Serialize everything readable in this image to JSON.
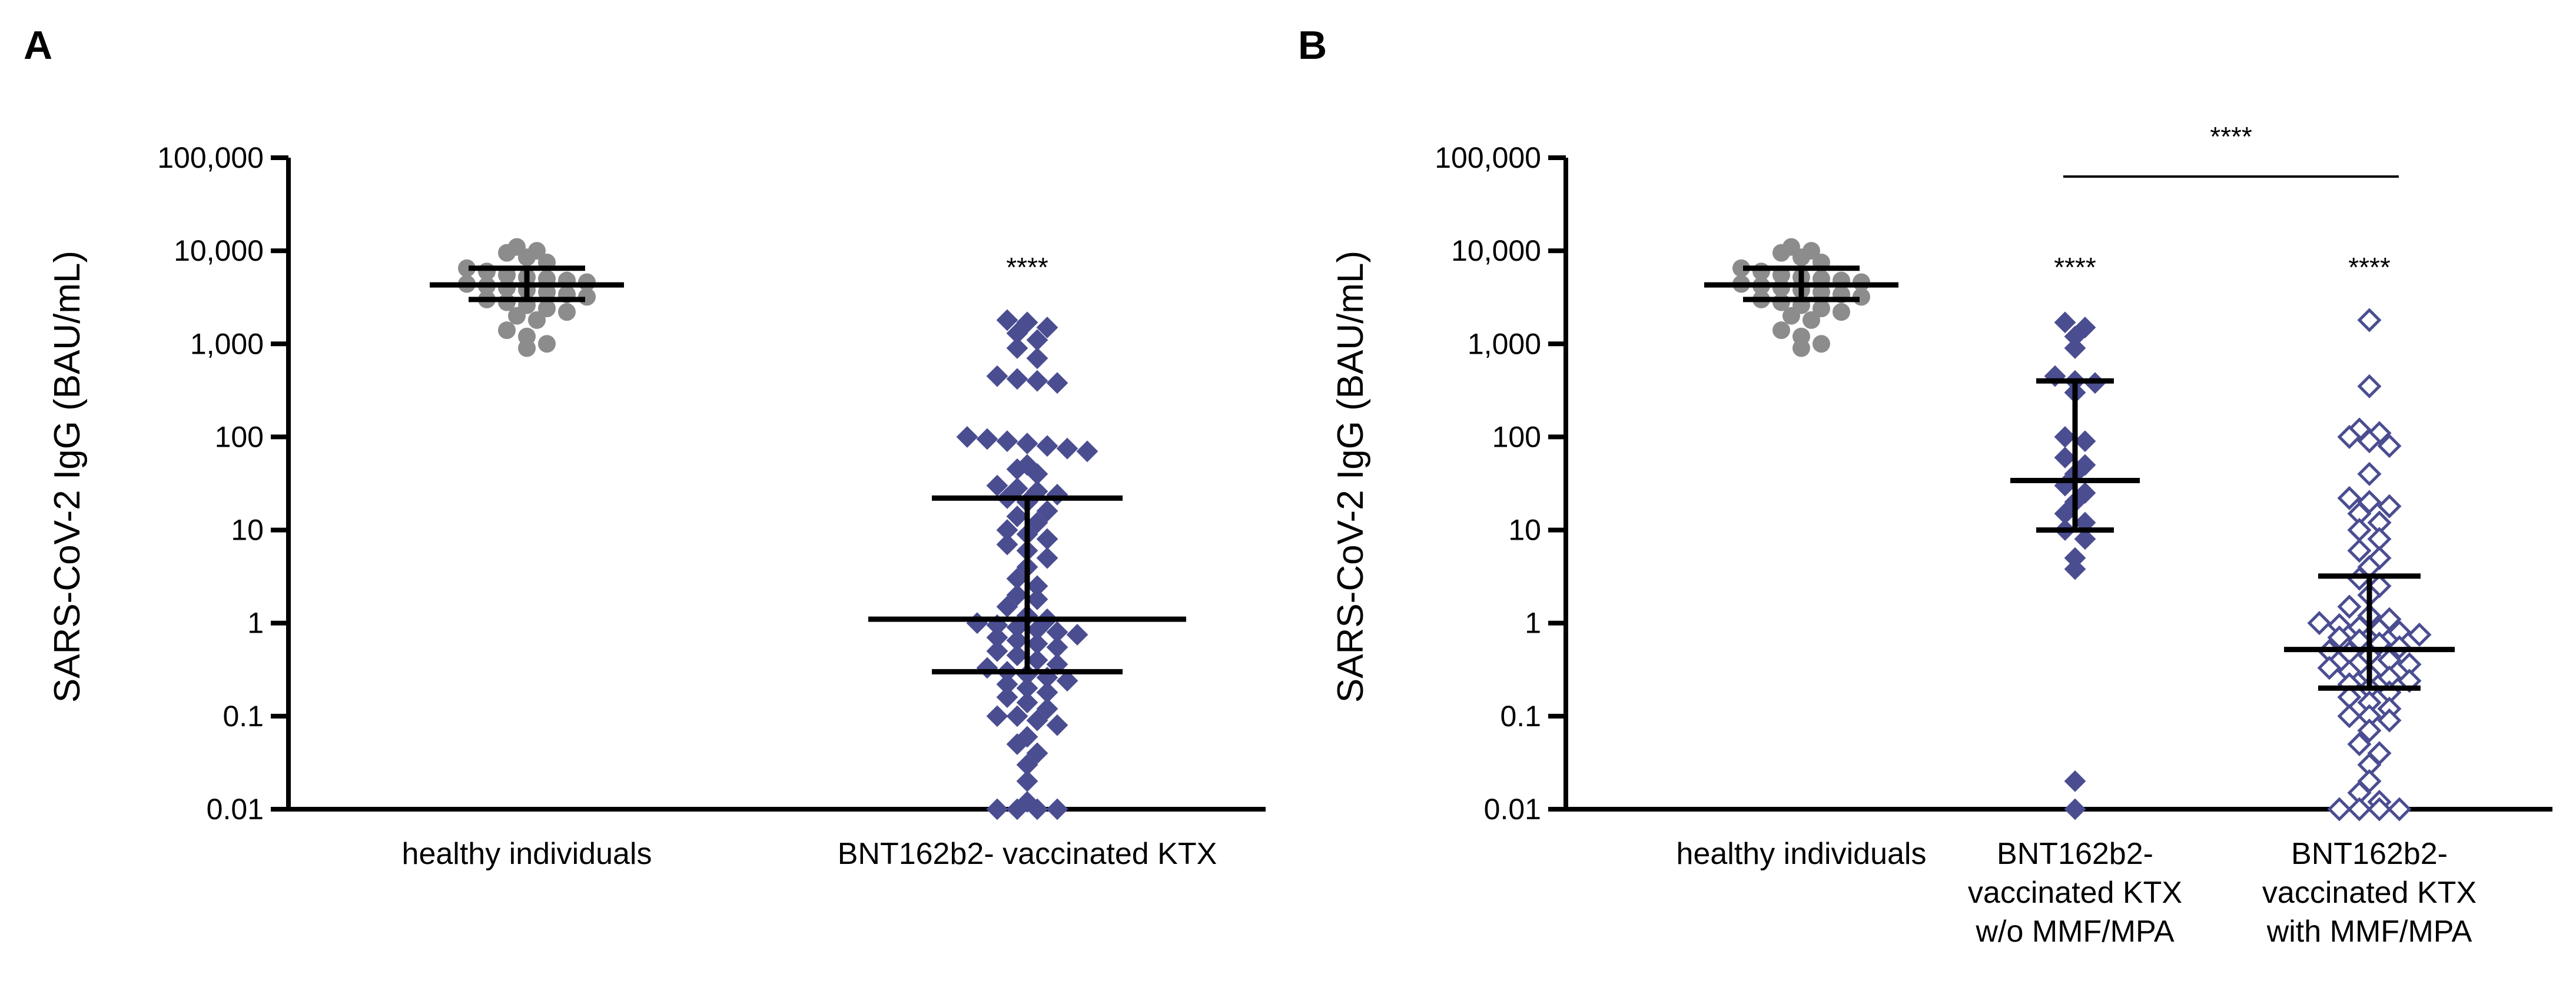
{
  "colors": {
    "healthy": "#8c8c8c",
    "ktx": "#4b4d91",
    "axis": "#000000"
  },
  "chart_data": [
    {
      "type": "scatter",
      "panel_label": "A",
      "ylabel": "SARS-CoV-2 IgG (BAU/mL)",
      "xlabel": "",
      "yscale": "log",
      "ylim": [
        0.01,
        100000
      ],
      "y_ticks": [
        {
          "value": 0.01,
          "label": "0.01"
        },
        {
          "value": 0.1,
          "label": "0.1"
        },
        {
          "value": 1,
          "label": "1"
        },
        {
          "value": 10,
          "label": "10"
        },
        {
          "value": 100,
          "label": "100"
        },
        {
          "value": 1000,
          "label": "1,000"
        },
        {
          "value": 10000,
          "label": "10,000"
        },
        {
          "value": 100000,
          "label": "100,000"
        }
      ],
      "groups": [
        {
          "name": "healthy individuals",
          "label_lines": [
            "healthy individuals"
          ],
          "marker": "circle",
          "color": "#8c8c8c",
          "median": 4300,
          "q1": 3000,
          "q3": 6500,
          "significance": "",
          "values": [
            11000,
            10000,
            9500,
            8500,
            7500,
            6500,
            6000,
            5500,
            5200,
            5000,
            4800,
            4600,
            4400,
            4200,
            4000,
            3800,
            3600,
            3400,
            3200,
            3000,
            2800,
            2600,
            2400,
            2200,
            2000,
            1800,
            1400,
            1200,
            1000,
            900
          ]
        },
        {
          "name": "BNT162b2- vaccinated KTX",
          "label_lines": [
            "BNT162b2- vaccinated KTX"
          ],
          "marker": "diamond",
          "color": "#4b4d91",
          "median": 1.1,
          "q1": 0.3,
          "q3": 22,
          "significance": "****",
          "values": [
            1800,
            1700,
            1500,
            1300,
            1100,
            900,
            700,
            450,
            420,
            400,
            380,
            100,
            95,
            90,
            85,
            80,
            75,
            70,
            50,
            45,
            40,
            30,
            28,
            26,
            24,
            22,
            20,
            16,
            14,
            12,
            10,
            9,
            8,
            7,
            6,
            5,
            4,
            3,
            2.5,
            2,
            1.8,
            1.5,
            1.2,
            1.1,
            1.0,
            0.95,
            0.9,
            0.85,
            0.8,
            0.75,
            0.7,
            0.65,
            0.6,
            0.55,
            0.5,
            0.45,
            0.4,
            0.36,
            0.33,
            0.3,
            0.28,
            0.26,
            0.24,
            0.22,
            0.2,
            0.18,
            0.16,
            0.14,
            0.12,
            0.1,
            0.1,
            0.09,
            0.08,
            0.06,
            0.05,
            0.04,
            0.03,
            0.02,
            0.012,
            0.01,
            0.01,
            0.01,
            0.01
          ]
        }
      ],
      "comparison": null
    },
    {
      "type": "scatter",
      "panel_label": "B",
      "ylabel": "SARS-CoV-2 IgG (BAU/mL)",
      "xlabel": "",
      "yscale": "log",
      "ylim": [
        0.01,
        100000
      ],
      "y_ticks": [
        {
          "value": 0.01,
          "label": "0.01"
        },
        {
          "value": 0.1,
          "label": "0.1"
        },
        {
          "value": 1,
          "label": "1"
        },
        {
          "value": 10,
          "label": "10"
        },
        {
          "value": 100,
          "label": "100"
        },
        {
          "value": 1000,
          "label": "1,000"
        },
        {
          "value": 10000,
          "label": "10,000"
        },
        {
          "value": 100000,
          "label": "100,000"
        }
      ],
      "groups": [
        {
          "name": "healthy individuals",
          "label_lines": [
            "healthy individuals"
          ],
          "marker": "circle",
          "color": "#8c8c8c",
          "median": 4300,
          "q1": 3000,
          "q3": 6500,
          "significance": "",
          "values": [
            11000,
            10000,
            9500,
            8500,
            7500,
            6500,
            6000,
            5500,
            5200,
            5000,
            4800,
            4600,
            4400,
            4200,
            4000,
            3800,
            3600,
            3400,
            3200,
            3000,
            2800,
            2600,
            2400,
            2200,
            2000,
            1800,
            1400,
            1200,
            1000,
            900
          ]
        },
        {
          "name": "BNT162b2- vaccinated KTX w/o MMF/MPA",
          "label_lines": [
            "BNT162b2-",
            "vaccinated KTX",
            "w/o MMF/MPA"
          ],
          "marker": "diamond",
          "color": "#4b4d91",
          "median": 34,
          "q1": 10,
          "q3": 400,
          "significance": "****",
          "values": [
            1700,
            1500,
            1200,
            900,
            450,
            400,
            380,
            300,
            100,
            90,
            60,
            50,
            40,
            30,
            25,
            20,
            15,
            12,
            10,
            8,
            5,
            3.8,
            0.02,
            0.01
          ]
        },
        {
          "name": "BNT162b2- vaccinated KTX with MMF/MPA",
          "label_lines": [
            "BNT162b2-",
            "vaccinated KTX",
            "with MMF/MPA"
          ],
          "marker": "diamond-open",
          "color": "#4b4d91",
          "median": 0.52,
          "q1": 0.2,
          "q3": 3.2,
          "significance": "****",
          "values": [
            1800,
            350,
            120,
            110,
            100,
            90,
            80,
            40,
            22,
            20,
            18,
            15,
            12,
            10,
            8,
            6,
            5,
            4,
            3,
            2.5,
            2,
            1.5,
            1.2,
            1.1,
            1.0,
            0.95,
            0.9,
            0.85,
            0.8,
            0.75,
            0.7,
            0.65,
            0.6,
            0.55,
            0.5,
            0.48,
            0.45,
            0.4,
            0.36,
            0.33,
            0.3,
            0.28,
            0.26,
            0.24,
            0.22,
            0.2,
            0.18,
            0.16,
            0.14,
            0.12,
            0.1,
            0.1,
            0.09,
            0.07,
            0.05,
            0.04,
            0.03,
            0.02,
            0.015,
            0.012,
            0.01,
            0.01,
            0.01,
            0.01
          ]
        }
      ],
      "comparison": {
        "from_group": 1,
        "to_group": 2,
        "label": "****"
      }
    }
  ]
}
